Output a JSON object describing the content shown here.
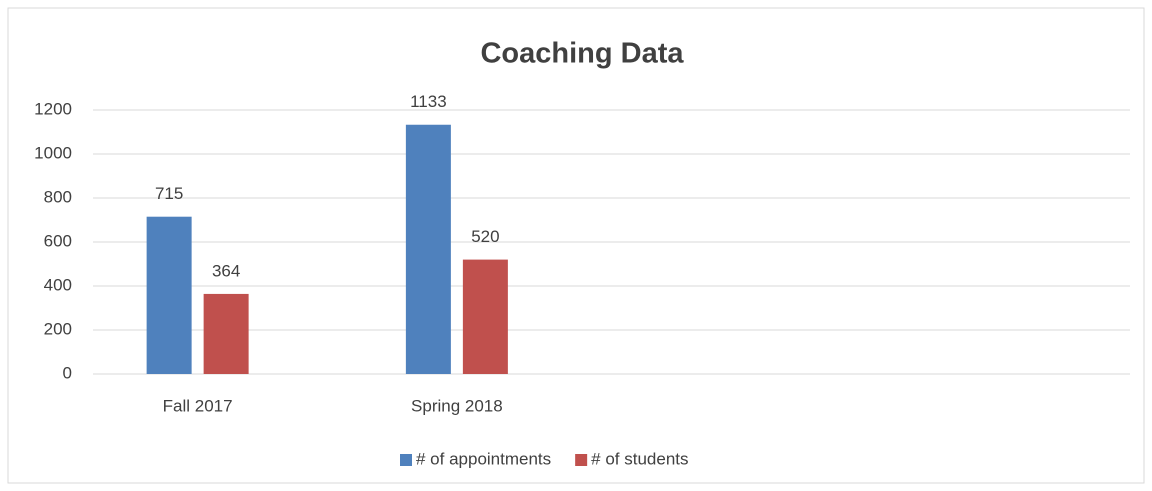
{
  "chart_data": {
    "type": "bar",
    "title": "Coaching Data",
    "categories": [
      "Fall 2017",
      "Spring 2018",
      null,
      null
    ],
    "series": [
      {
        "name": "# of appointments",
        "color": "#4f81bd",
        "values": [
          715,
          1133,
          null,
          null
        ]
      },
      {
        "name": "# of students",
        "color": "#c0504d",
        "values": [
          364,
          520,
          null,
          null
        ]
      }
    ],
    "ylim": [
      0,
      1200
    ],
    "yticks": [
      0,
      200,
      400,
      600,
      800,
      1000,
      1200
    ],
    "grid": true,
    "legend": "bottom"
  }
}
